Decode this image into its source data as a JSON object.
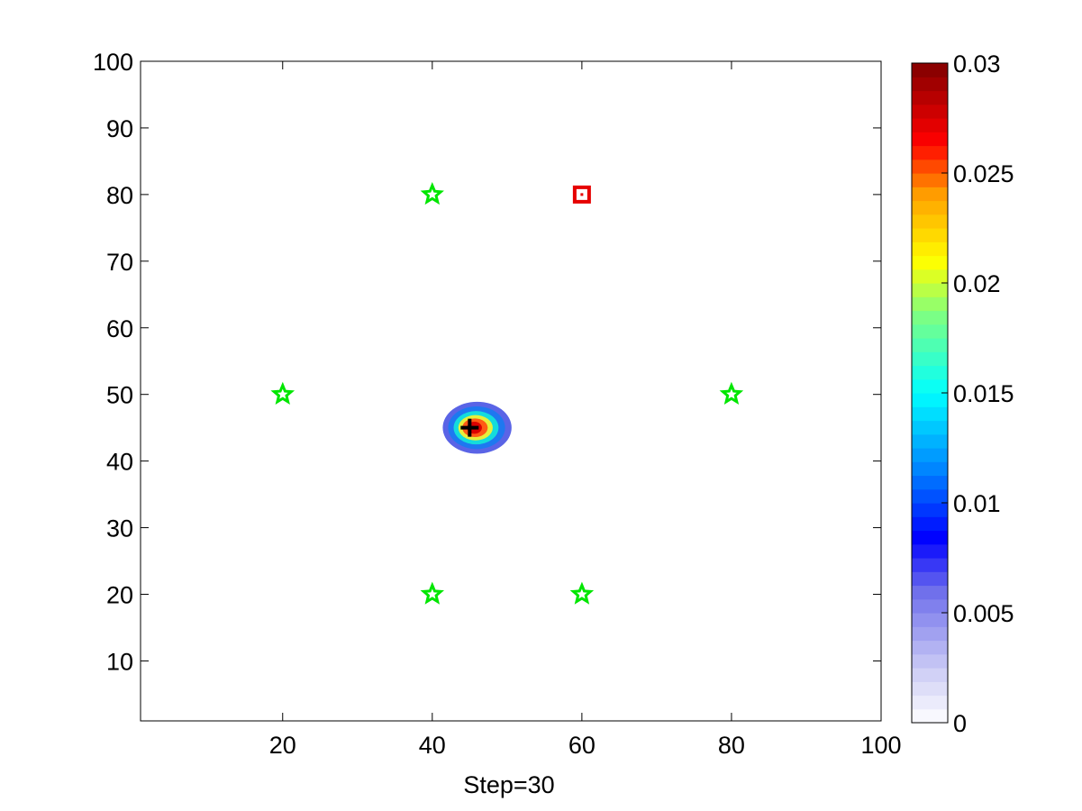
{
  "chart_data": {
    "type": "contour",
    "title": "",
    "xlabel": "Step=30",
    "ylabel": "",
    "xlim": [
      1,
      100
    ],
    "ylim": [
      1,
      100
    ],
    "xticks": [
      20,
      40,
      60,
      80,
      100
    ],
    "yticks": [
      10,
      20,
      30,
      40,
      50,
      60,
      70,
      80,
      90,
      100
    ],
    "grid": false,
    "colorbar": {
      "range": [
        0,
        0.03
      ],
      "ticks": [
        0,
        0.005,
        0.01,
        0.015,
        0.02,
        0.025,
        0.03
      ],
      "tick_labels": [
        "0",
        "0.005",
        "0.01",
        "0.015",
        "0.02",
        "0.025",
        "0.03"
      ],
      "colormap": "jet-with-white-low",
      "levels": 48
    },
    "density_blob": {
      "center": [
        46,
        45
      ],
      "levels": [
        {
          "value": 0.006,
          "rx": 4.6,
          "ry": 3.9,
          "color": "#5a64e6"
        },
        {
          "value": 0.011,
          "rx": 3.8,
          "ry": 3.2,
          "color": "#1e78f0"
        },
        {
          "value": 0.015,
          "rx": 3.0,
          "ry": 2.5,
          "color": "#14dcdc"
        },
        {
          "value": 0.019,
          "rx": 2.3,
          "ry": 1.9,
          "color": "#e6f03c"
        },
        {
          "value": 0.025,
          "rx": 1.7,
          "ry": 1.4,
          "color": "#ff5a14"
        },
        {
          "value": 0.028,
          "rx": 1.0,
          "ry": 0.9,
          "color": "#dc0000"
        }
      ]
    },
    "estimate_marker": {
      "x": 45,
      "y": 45,
      "shape": "plus",
      "color": "#000000"
    },
    "target_marker": {
      "x": 60,
      "y": 80,
      "shape": "square",
      "color": "#e60000"
    },
    "sensors": {
      "shape": "star",
      "color": "#00e600",
      "points": [
        {
          "x": 40,
          "y": 80
        },
        {
          "x": 20,
          "y": 50
        },
        {
          "x": 80,
          "y": 50
        },
        {
          "x": 40,
          "y": 20
        },
        {
          "x": 60,
          "y": 20
        }
      ]
    }
  }
}
